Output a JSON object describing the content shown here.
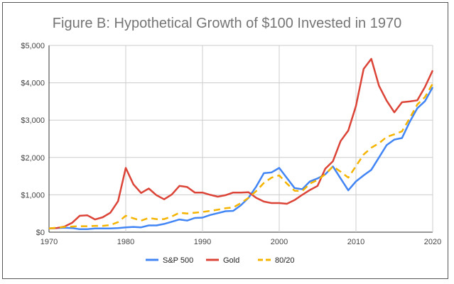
{
  "chart_data": {
    "type": "line",
    "title": "Figure B: Hypothetical Growth of $100 Invested in 1970",
    "xlabel": "",
    "ylabel": "",
    "xlim": [
      1970,
      2020
    ],
    "ylim": [
      0,
      5000
    ],
    "x_ticks": [
      "1970",
      "1980",
      "1990",
      "2000",
      "2010",
      "2020"
    ],
    "y_ticks": [
      "$0",
      "$1,000",
      "$2,000",
      "$3,000",
      "$4,000",
      "$5,000"
    ],
    "grid": true,
    "legend_position": "bottom",
    "x": [
      1970,
      1971,
      1972,
      1973,
      1974,
      1975,
      1976,
      1977,
      1978,
      1979,
      1980,
      1981,
      1982,
      1983,
      1984,
      1985,
      1986,
      1987,
      1988,
      1989,
      1990,
      1991,
      1992,
      1993,
      1994,
      1995,
      1996,
      1997,
      1998,
      1999,
      2000,
      2001,
      2002,
      2003,
      2004,
      2005,
      2006,
      2007,
      2008,
      2009,
      2010,
      2011,
      2012,
      2013,
      2014,
      2015,
      2016,
      2017,
      2018,
      2019,
      2020
    ],
    "series": [
      {
        "name": "S&P 500",
        "color": "#4285f4",
        "dashed": false,
        "values": [
          100,
          110,
          120,
          110,
          80,
          80,
          100,
          100,
          100,
          110,
          130,
          140,
          130,
          180,
          180,
          220,
          280,
          340,
          310,
          380,
          390,
          460,
          510,
          560,
          570,
          720,
          920,
          1220,
          1580,
          1600,
          1720,
          1450,
          1180,
          1150,
          1360,
          1440,
          1550,
          1760,
          1440,
          1120,
          1360,
          1520,
          1670,
          2000,
          2330,
          2480,
          2520,
          2950,
          3320,
          3510,
          3880
        ]
      },
      {
        "name": "Gold",
        "color": "#db4437",
        "dashed": false,
        "values": [
          100,
          110,
          150,
          250,
          440,
          450,
          340,
          400,
          520,
          830,
          1720,
          1280,
          1050,
          1170,
          990,
          880,
          1010,
          1240,
          1210,
          1060,
          1060,
          1000,
          950,
          990,
          1060,
          1060,
          1070,
          920,
          820,
          780,
          780,
          760,
          860,
          1000,
          1130,
          1240,
          1700,
          1900,
          2440,
          2720,
          3380,
          4370,
          4640,
          3920,
          3520,
          3210,
          3480,
          3500,
          3530,
          3890,
          4330
        ]
      },
      {
        "name": "80/20",
        "color": "#f4b400",
        "dashed": true,
        "values": [
          100,
          120,
          140,
          150,
          160,
          160,
          170,
          170,
          190,
          270,
          440,
          370,
          310,
          380,
          350,
          350,
          420,
          520,
          500,
          520,
          540,
          570,
          600,
          640,
          660,
          780,
          920,
          1100,
          1320,
          1460,
          1520,
          1300,
          1110,
          1100,
          1300,
          1400,
          1550,
          1760,
          1620,
          1460,
          1770,
          2080,
          2260,
          2380,
          2550,
          2620,
          2700,
          3050,
          3420,
          3620,
          3980
        ]
      }
    ]
  }
}
